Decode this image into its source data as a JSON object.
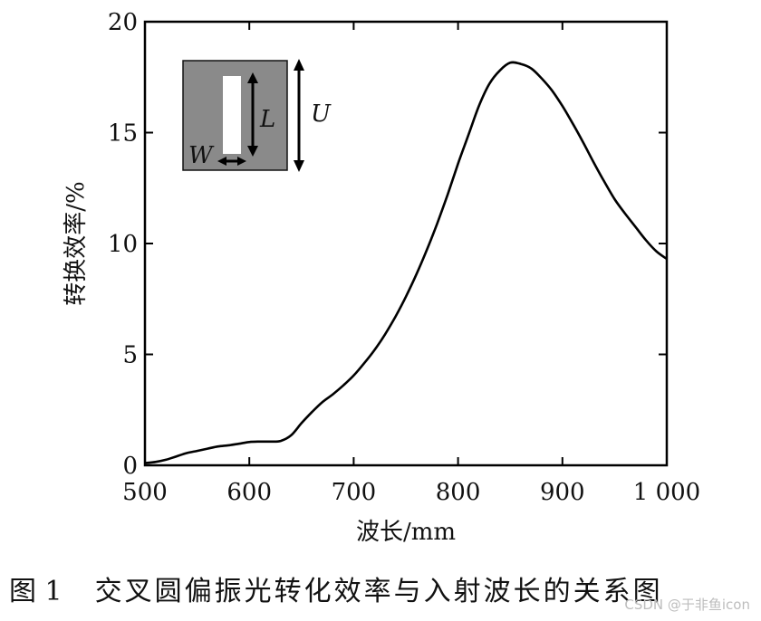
{
  "chart_data": {
    "type": "line",
    "xlabel": "波长/mm",
    "ylabel": "转换效率/%",
    "xlim": [
      500,
      1000
    ],
    "ylim": [
      0,
      20
    ],
    "x_ticks": [
      500,
      600,
      700,
      800,
      900,
      1000
    ],
    "x_tick_labels": [
      "500",
      "600",
      "700",
      "800",
      "900",
      "1 000"
    ],
    "y_ticks": [
      0,
      5,
      10,
      15,
      20
    ],
    "y_tick_labels": [
      "0",
      "5",
      "10",
      "15",
      "20"
    ],
    "grid": false,
    "series": [
      {
        "color": "#000000",
        "x": [
          500,
          510,
          520,
          530,
          540,
          550,
          560,
          570,
          580,
          590,
          600,
          610,
          620,
          630,
          640,
          650,
          660,
          670,
          680,
          690,
          700,
          710,
          720,
          730,
          740,
          750,
          760,
          770,
          780,
          790,
          800,
          810,
          820,
          830,
          840,
          850,
          860,
          870,
          880,
          890,
          900,
          910,
          920,
          930,
          940,
          950,
          960,
          970,
          980,
          990,
          1000
        ],
        "y": [
          0.1,
          0.15,
          0.25,
          0.4,
          0.55,
          0.65,
          0.75,
          0.85,
          0.9,
          0.97,
          1.05,
          1.07,
          1.07,
          1.1,
          1.35,
          1.9,
          2.4,
          2.85,
          3.2,
          3.6,
          4.05,
          4.6,
          5.2,
          5.9,
          6.7,
          7.6,
          8.6,
          9.7,
          10.9,
          12.2,
          13.6,
          14.9,
          16.2,
          17.2,
          17.8,
          18.15,
          18.1,
          17.9,
          17.45,
          16.9,
          16.2,
          15.4,
          14.55,
          13.65,
          12.8,
          12.0,
          11.35,
          10.75,
          10.15,
          9.65,
          9.3
        ]
      }
    ],
    "inset": {
      "fill_color": "#8a8a8a",
      "slot_color": "#ffffff",
      "labels": {
        "length": "L",
        "width": "W",
        "period": "U"
      }
    }
  },
  "figure_caption": {
    "number": "图 1",
    "text": "交叉圆偏振光转化效率与入射波长的关系图"
  },
  "watermark": "CSDN @于非鱼icon"
}
